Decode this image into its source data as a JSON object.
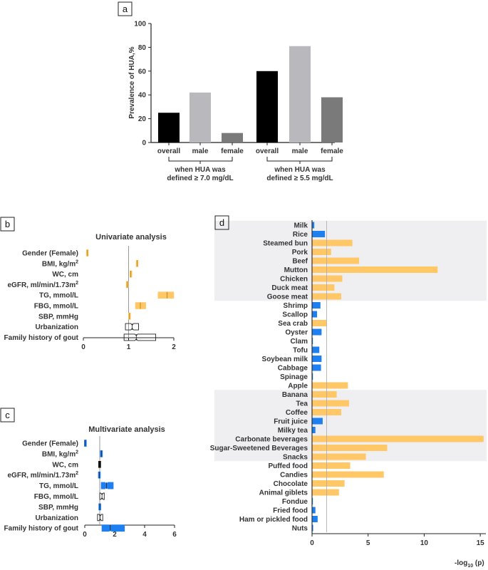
{
  "colors": {
    "black": "#000000",
    "gray_light": "#b8b8bd",
    "gray_dark": "#7a7a7a",
    "orange": "#ffc766",
    "blue": "#1e7ff0",
    "band": "#efeff2"
  },
  "chart_data": [
    {
      "panel": "a",
      "type": "bar",
      "ylabel": "Prevalence of HUA,%",
      "ylim": [
        0,
        100
      ],
      "yticks": [
        "0",
        "20",
        "40",
        "60",
        "80",
        "100"
      ],
      "categories": [
        "overall",
        "male",
        "female",
        "overall",
        "male",
        "female"
      ],
      "values": [
        25,
        42,
        8,
        60,
        81,
        38
      ],
      "bar_colors": [
        "black",
        "gray_light",
        "gray_dark",
        "black",
        "gray_light",
        "gray_dark"
      ],
      "groups": [
        {
          "line1": "when HUA was",
          "line2": "defined ≥ 7.0 mg/dL"
        },
        {
          "line1": "when HUA was",
          "line2": "defined ≥ 5.5 mg/dL"
        }
      ]
    },
    {
      "panel": "b",
      "type": "boxplot",
      "title": "Univariate analysis",
      "xlim": [
        0,
        2
      ],
      "xticks": [
        "0",
        "1",
        "2"
      ],
      "reference": 1,
      "rows": [
        {
          "label": "Gender (Female)",
          "label_sup": "",
          "low": 0.08,
          "high": 0.1,
          "median": 0.09,
          "color": "orange",
          "shape": "box"
        },
        {
          "label": "BMI, kg/m",
          "label_sup": "2",
          "low": 1.18,
          "high": 1.2,
          "median": 1.19,
          "color": "orange",
          "shape": "box"
        },
        {
          "label": "WC, cm",
          "label_sup": "",
          "low": 1.04,
          "high": 1.06,
          "median": 1.05,
          "color": "orange",
          "shape": "box"
        },
        {
          "label": "eGFR, ml/min/1.73m",
          "label_sup": "2",
          "low": 0.96,
          "high": 0.98,
          "median": 0.97,
          "color": "orange",
          "shape": "box"
        },
        {
          "label": "TG, mmol/L",
          "label_sup": "",
          "low": 1.65,
          "high": 2.0,
          "median": 1.85,
          "color": "orange",
          "shape": "box"
        },
        {
          "label": "FBG, mmol/L",
          "label_sup": "",
          "low": 1.15,
          "high": 1.38,
          "median": 1.26,
          "color": "orange",
          "shape": "box"
        },
        {
          "label": "SBP, mmHg",
          "label_sup": "",
          "low": 1.01,
          "high": 1.03,
          "median": 1.02,
          "color": "orange",
          "shape": "box"
        },
        {
          "label": "Urbanization",
          "label_sup": "",
          "low": 0.93,
          "high": 1.22,
          "median": 1.08,
          "color": "none",
          "shape": "notch"
        },
        {
          "label": "Family history of gout",
          "label_sup": "",
          "low": 0.9,
          "high": 1.6,
          "median": 1.17,
          "color": "none",
          "shape": "notch"
        }
      ]
    },
    {
      "panel": "c",
      "type": "boxplot",
      "title": "Multivariate analysis",
      "xlim": [
        0,
        6
      ],
      "xticks": [
        "0",
        "2",
        "4",
        "6"
      ],
      "reference": 1,
      "rows": [
        {
          "label": "Gender (Female)",
          "label_sup": "",
          "low": 0.02,
          "high": 0.06,
          "median": 0.04,
          "color": "blue",
          "shape": "box"
        },
        {
          "label": "BMI, kg/m",
          "label_sup": "2",
          "low": 1.05,
          "high": 1.18,
          "median": 1.11,
          "color": "blue",
          "shape": "box"
        },
        {
          "label": "WC, cm",
          "label_sup": "",
          "low": 0.97,
          "high": 1.02,
          "median": 0.99,
          "color": "black",
          "shape": "box"
        },
        {
          "label": "eGFR, ml/min/1.73m",
          "label_sup": "2",
          "low": 0.96,
          "high": 0.99,
          "median": 0.97,
          "color": "blue",
          "shape": "box"
        },
        {
          "label": "TG, mmol/L",
          "label_sup": "",
          "low": 1.1,
          "high": 1.9,
          "median": 1.45,
          "color": "blue",
          "shape": "notch"
        },
        {
          "label": "FBG, mmol/L",
          "label_sup": "",
          "low": 1.0,
          "high": 1.3,
          "median": 1.15,
          "color": "none",
          "shape": "notch"
        },
        {
          "label": "SBP, mmHg",
          "label_sup": "",
          "low": 0.99,
          "high": 1.02,
          "median": 1.0,
          "color": "blue",
          "shape": "box"
        },
        {
          "label": "Urbanization",
          "label_sup": "",
          "low": 0.85,
          "high": 1.2,
          "median": 1.03,
          "color": "none",
          "shape": "notch"
        },
        {
          "label": "Family history of gout",
          "label_sup": "",
          "low": 1.15,
          "high": 2.65,
          "median": 1.7,
          "color": "blue",
          "shape": "notch"
        }
      ]
    },
    {
      "panel": "d",
      "type": "bar-horizontal",
      "xlabel": "-log",
      "xlabel_sub": "10",
      "xlabel_tail": " (p)",
      "xlim": [
        0,
        15.5
      ],
      "xticks": [
        0,
        5,
        10,
        15
      ],
      "xtick_labels": [
        "0",
        "5",
        "10",
        "15"
      ],
      "threshold": 1.3,
      "bands": [
        [
          0,
          8
        ],
        [
          19,
          26
        ]
      ],
      "items": [
        {
          "label": "Milk",
          "value": 0.2,
          "sig": false
        },
        {
          "label": "Rice",
          "value": 1.15,
          "sig": false
        },
        {
          "label": "Steamed bun",
          "value": 3.6,
          "sig": true
        },
        {
          "label": "Pork",
          "value": 1.7,
          "sig": true
        },
        {
          "label": "Beef",
          "value": 4.2,
          "sig": true
        },
        {
          "label": "Mutton",
          "value": 11.2,
          "sig": true
        },
        {
          "label": "Chicken",
          "value": 2.7,
          "sig": true
        },
        {
          "label": "Duck meat",
          "value": 2.0,
          "sig": true
        },
        {
          "label": "Goose meat",
          "value": 2.6,
          "sig": true
        },
        {
          "label": "Shrimp",
          "value": 0.75,
          "sig": false
        },
        {
          "label": "Scallop",
          "value": 0.45,
          "sig": false
        },
        {
          "label": "Sea crab",
          "value": 1.3,
          "sig": true
        },
        {
          "label": "Oyster",
          "value": 0.85,
          "sig": false
        },
        {
          "label": "Clam",
          "value": 0.05,
          "sig": false
        },
        {
          "label": "Tofu",
          "value": 0.65,
          "sig": false
        },
        {
          "label": "Soybean milk",
          "value": 0.85,
          "sig": false
        },
        {
          "label": "Cabbage",
          "value": 0.8,
          "sig": false
        },
        {
          "label": "Spinage",
          "value": 0.08,
          "sig": false
        },
        {
          "label": "Apple",
          "value": 3.2,
          "sig": true
        },
        {
          "label": "Banana",
          "value": 2.2,
          "sig": true
        },
        {
          "label": "Tea",
          "value": 3.3,
          "sig": true
        },
        {
          "label": "Coffee",
          "value": 2.6,
          "sig": true
        },
        {
          "label": "Fruit juice",
          "value": 0.95,
          "sig": false
        },
        {
          "label": "Milky tea",
          "value": 0.3,
          "sig": false
        },
        {
          "label": "Carbonate beverages",
          "value": 15.3,
          "sig": true
        },
        {
          "label": "Sugar-Sweetened Beverages",
          "value": 6.7,
          "sig": true
        },
        {
          "label": "Snacks",
          "value": 4.8,
          "sig": true
        },
        {
          "label": "Puffed food",
          "value": 3.4,
          "sig": true
        },
        {
          "label": "Candies",
          "value": 6.4,
          "sig": true
        },
        {
          "label": "Chocolate",
          "value": 2.9,
          "sig": true
        },
        {
          "label": "Animal giblets",
          "value": 2.4,
          "sig": true
        },
        {
          "label": "Fondue",
          "value": 0.05,
          "sig": false
        },
        {
          "label": "Fried food",
          "value": 0.3,
          "sig": false
        },
        {
          "label": "Ham or pickled food",
          "value": 0.5,
          "sig": false
        },
        {
          "label": "Nuts",
          "value": 0.1,
          "sig": false
        }
      ]
    }
  ]
}
